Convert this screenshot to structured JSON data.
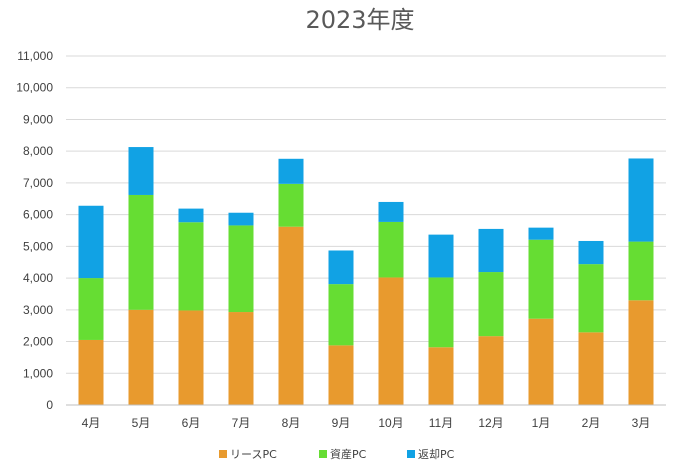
{
  "chart_data": {
    "type": "bar",
    "stacked": true,
    "title": "2023年度",
    "xlabel": "",
    "ylabel": "",
    "ylim": [
      0,
      11000
    ],
    "yticks": [
      0,
      1000,
      2000,
      3000,
      4000,
      5000,
      6000,
      7000,
      8000,
      9000,
      10000,
      11000
    ],
    "ytick_labels": [
      "0",
      "1,000",
      "2,000",
      "3,000",
      "4,000",
      "5,000",
      "6,000",
      "7,000",
      "8,000",
      "9,000",
      "10,000",
      "11,000"
    ],
    "grid": true,
    "legend_position": "bottom",
    "categories": [
      "4月",
      "5月",
      "6月",
      "7月",
      "8月",
      "9月",
      "10月",
      "11月",
      "12月",
      "1月",
      "2月",
      "3月"
    ],
    "series": [
      {
        "name": "リースPC",
        "color": "#E89A2E",
        "values": [
          2050,
          3000,
          2980,
          2930,
          5620,
          1880,
          4020,
          1820,
          2170,
          2720,
          2290,
          3300
        ]
      },
      {
        "name": "資産PC",
        "color": "#66DD33",
        "values": [
          1950,
          3620,
          2780,
          2730,
          1350,
          1930,
          1750,
          2200,
          2020,
          2490,
          2150,
          1850
        ]
      },
      {
        "name": "返却PC",
        "color": "#11A2E4",
        "values": [
          2280,
          1510,
          430,
          400,
          790,
          1060,
          630,
          1350,
          1360,
          380,
          730,
          2620
        ]
      }
    ]
  }
}
